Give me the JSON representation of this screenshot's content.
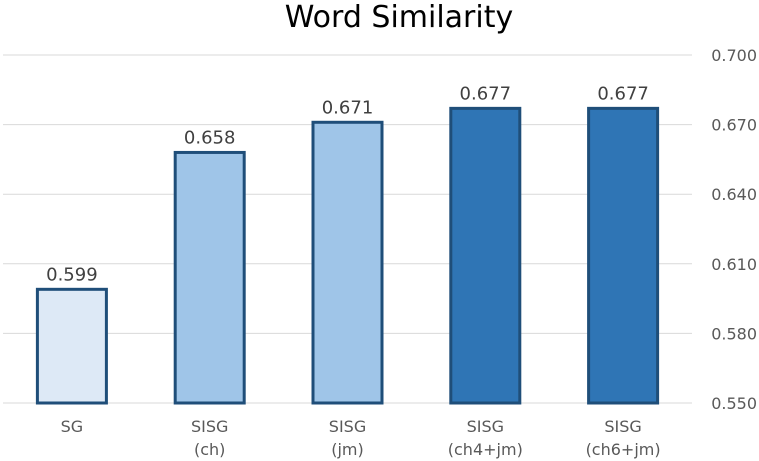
{
  "chart_data": {
    "type": "bar",
    "title": "Word Similarity",
    "categories": [
      [
        "SG"
      ],
      [
        "SISG",
        "(ch)"
      ],
      [
        "SISG",
        "(jm)"
      ],
      [
        "SISG",
        "(ch4+jm)"
      ],
      [
        "SISG",
        "(ch6+jm)"
      ]
    ],
    "values": [
      0.599,
      0.658,
      0.671,
      0.677,
      0.677
    ],
    "data_labels": [
      "0.599",
      "0.658",
      "0.671",
      "0.677",
      "0.677"
    ],
    "bar_colors": [
      "#dde9f6",
      "#9fc5e8",
      "#9fc5e8",
      "#2f75b5",
      "#2f75b5"
    ],
    "bar_border_color": "#1f4e79",
    "ylim": [
      0.55,
      0.7
    ],
    "yticks": [
      "0.550",
      "0.580",
      "0.610",
      "0.640",
      "0.670",
      "0.700"
    ],
    "ytick_values": [
      0.55,
      0.58,
      0.61,
      0.64,
      0.67,
      0.7
    ],
    "y_axis_side": "right",
    "grid": true,
    "xlabel": "",
    "ylabel": ""
  }
}
